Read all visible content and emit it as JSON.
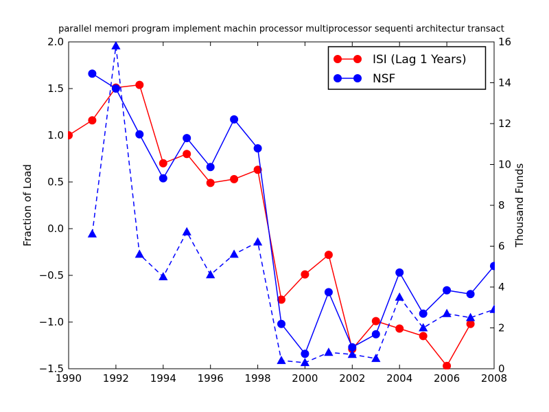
{
  "chart_data": {
    "type": "line",
    "title": "parallel memori program implement machin processor multiprocessor sequenti architectur transact",
    "xlim": [
      1990,
      2008
    ],
    "x_ticks": {
      "values": [
        1990,
        1992,
        1994,
        1996,
        1998,
        2000,
        2002,
        2004,
        2006,
        2008
      ],
      "labels": [
        "1990",
        "1992",
        "1994",
        "1996",
        "1998",
        "2000",
        "2002",
        "2004",
        "2006",
        "2008"
      ]
    },
    "left_axis": {
      "label": "Fraction of Load",
      "lim": [
        -1.5,
        2.0
      ],
      "ticks": {
        "values": [
          2.0,
          1.5,
          1.0,
          0.5,
          0.0,
          -0.5,
          -1.0,
          -1.5
        ],
        "labels": [
          "2.0",
          "1.5",
          "1.0",
          "0.5",
          "0.0",
          "−0.5",
          "−1.0",
          "−1.5"
        ]
      }
    },
    "right_axis": {
      "label": "Thousand Funds",
      "lim": [
        0,
        16
      ],
      "ticks": {
        "values": [
          16,
          14,
          12,
          10,
          8,
          6,
          4,
          2,
          0
        ],
        "labels": [
          "16",
          "14",
          "12",
          "10",
          "8",
          "6",
          "4",
          "2",
          "0"
        ]
      }
    },
    "legend": {
      "position": "upper right",
      "entries": [
        "ISI (Lag 1 Years)",
        "NSF"
      ]
    },
    "grid": false,
    "series": [
      {
        "id": "isi",
        "name": "ISI (Lag 1 Years)",
        "axis": "left",
        "color": "#ff0000",
        "line": "solid",
        "marker": "circle",
        "in_legend": true,
        "points": [
          [
            1990,
            1.0
          ],
          [
            1991,
            1.16
          ],
          [
            1992,
            1.51
          ],
          [
            1993,
            1.54
          ],
          [
            1994,
            0.7
          ],
          [
            1995,
            0.8
          ],
          [
            1996,
            0.49
          ],
          [
            1997,
            0.53
          ],
          [
            1998,
            0.63
          ],
          [
            1999,
            -0.76
          ],
          [
            2000,
            -0.49
          ],
          [
            2001,
            -0.28
          ],
          [
            2002,
            -1.29
          ],
          [
            2003,
            -0.99
          ],
          [
            2004,
            -1.07
          ],
          [
            2005,
            -1.15
          ],
          [
            2006,
            -1.47
          ],
          [
            2007,
            -1.02
          ]
        ]
      },
      {
        "id": "nsf",
        "name": "NSF",
        "axis": "left",
        "color": "#0000ff",
        "line": "solid",
        "marker": "circle",
        "in_legend": true,
        "points": [
          [
            1991,
            1.66
          ],
          [
            1992,
            1.5
          ],
          [
            1993,
            1.01
          ],
          [
            1994,
            0.54
          ],
          [
            1995,
            0.97
          ],
          [
            1996,
            0.66
          ],
          [
            1997,
            1.17
          ],
          [
            1998,
            0.86
          ],
          [
            1999,
            -1.02
          ],
          [
            2000,
            -1.34
          ],
          [
            2001,
            -0.68
          ],
          [
            2002,
            -1.27
          ],
          [
            2003,
            -1.13
          ],
          [
            2004,
            -0.47
          ],
          [
            2005,
            -0.91
          ],
          [
            2006,
            -0.66
          ],
          [
            2007,
            -0.7
          ],
          [
            2008,
            -0.4
          ]
        ]
      },
      {
        "id": "nsf-funds",
        "name": "NSF",
        "axis": "right",
        "color": "#0000ff",
        "line": "dashed",
        "marker": "triangle",
        "in_legend": false,
        "points": [
          [
            1991,
            6.6
          ],
          [
            1992,
            15.8
          ],
          [
            1993,
            5.6
          ],
          [
            1994,
            4.5
          ],
          [
            1995,
            6.7
          ],
          [
            1996,
            4.6
          ],
          [
            1997,
            5.6
          ],
          [
            1998,
            6.2
          ],
          [
            1999,
            0.4
          ],
          [
            2000,
            0.3
          ],
          [
            2001,
            0.8
          ],
          [
            2002,
            0.7
          ],
          [
            2003,
            0.5
          ],
          [
            2004,
            3.5
          ],
          [
            2005,
            2.0
          ],
          [
            2006,
            2.7
          ],
          [
            2007,
            2.5
          ],
          [
            2008,
            2.9
          ]
        ]
      }
    ]
  }
}
